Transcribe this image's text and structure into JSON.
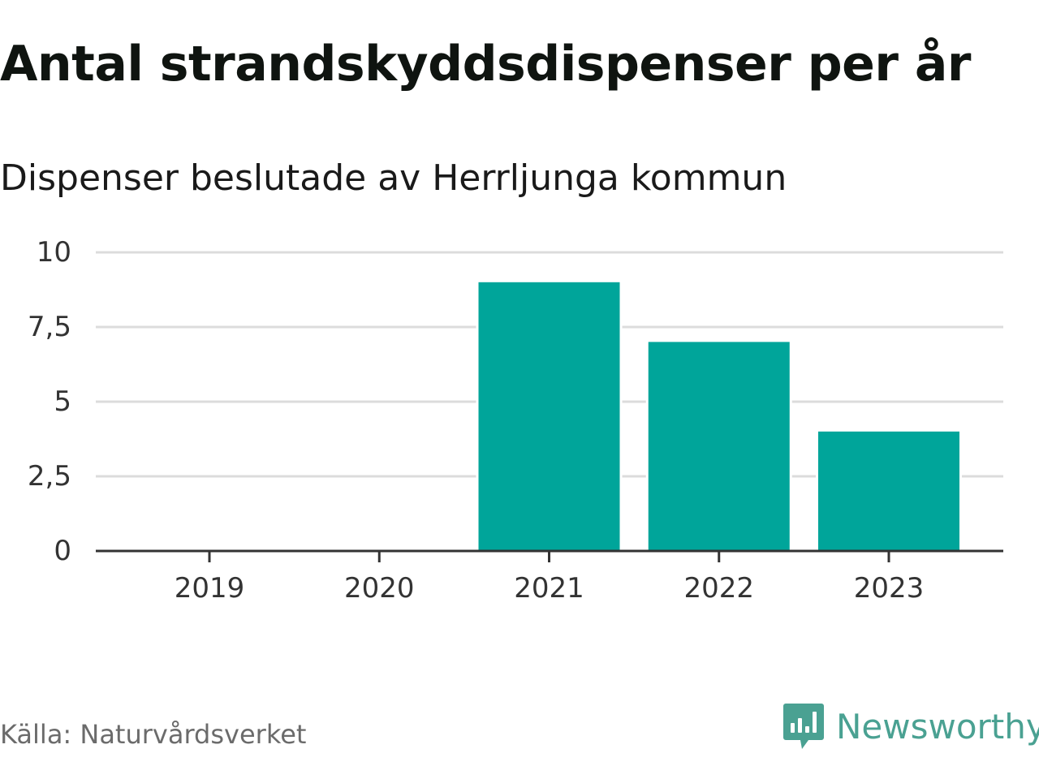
{
  "header": {
    "title": "Antal strandskyddsdispenser per år",
    "subtitle": "Dispenser beslutade av Herrljunga kommun"
  },
  "chart_data": {
    "type": "bar",
    "title": "Antal strandskyddsdispenser per år",
    "subtitle": "Dispenser beslutade av Herrljunga kommun",
    "categories": [
      "2019",
      "2020",
      "2021",
      "2022",
      "2023"
    ],
    "values": [
      0,
      0,
      9,
      7,
      4
    ],
    "y_ticks": [
      0,
      2.5,
      5,
      7.5,
      10
    ],
    "y_tick_labels": [
      "0",
      "2,5",
      "5",
      "7,5",
      "10"
    ],
    "ylim": [
      0,
      10
    ],
    "xlabel": "",
    "ylabel": "",
    "grid": true,
    "legend": "none",
    "bar_color": "#00a59a",
    "grid_color": "#dcdcdc",
    "axis_color": "#333333"
  },
  "footer": {
    "source": "Källa: Naturvårdsverket",
    "brand_name": "Newsworthy",
    "brand_icon": "newsworthy-logo-icon",
    "brand_color": "#4aa192"
  }
}
